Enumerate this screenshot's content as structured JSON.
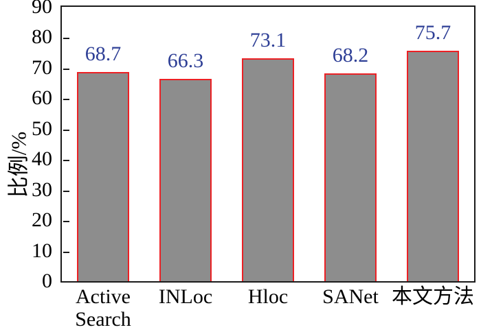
{
  "chart_data": {
    "type": "bar",
    "categories": [
      "Active\nSearch",
      "INLoc",
      "Hloc",
      "SANet",
      "本文方法"
    ],
    "values": [
      68.7,
      66.3,
      73.1,
      68.2,
      75.7
    ],
    "title": "",
    "xlabel": "",
    "ylabel": "比例/%",
    "ylim": [
      0,
      90
    ],
    "ytick_step": 10,
    "ytick_labels": [
      "0",
      "10",
      "20",
      "30",
      "40",
      "50",
      "60",
      "70",
      "80",
      "90"
    ],
    "grid": false,
    "legend": null,
    "tick_direction": "in",
    "colors": {
      "bar_fill": "#8d8d8d",
      "bar_border": "#ec2024",
      "value_label": "#2e3f96",
      "axis": "#1a1a1a",
      "tick_label": "#000000",
      "background": "#ffffff"
    }
  }
}
